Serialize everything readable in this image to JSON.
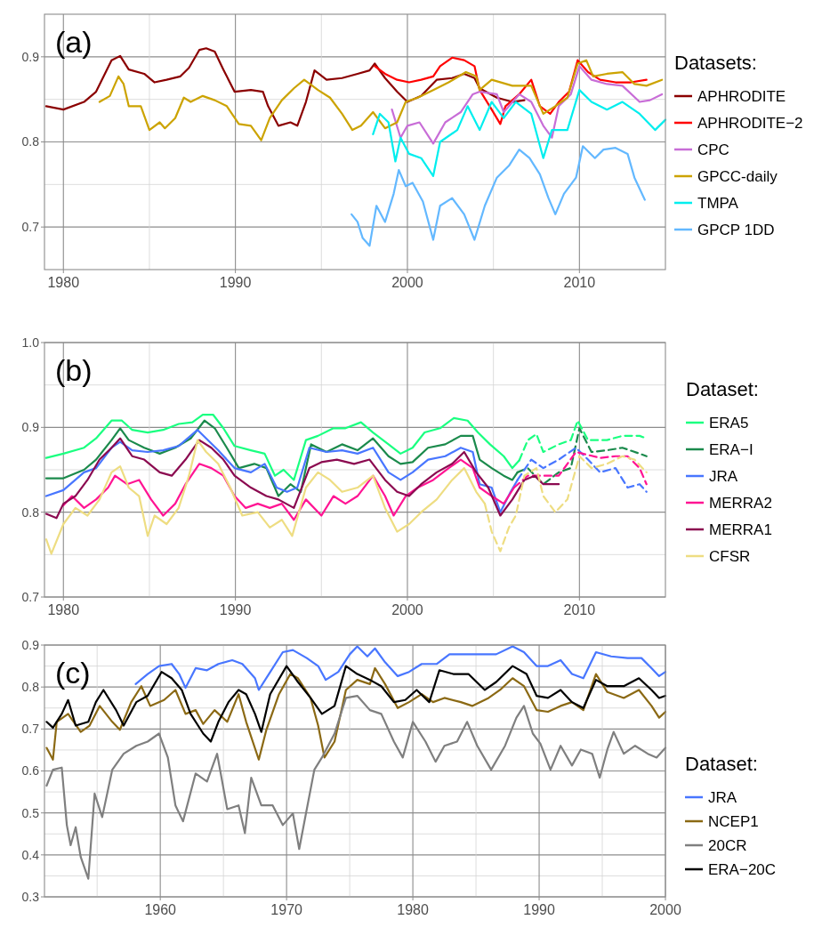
{
  "chart_data": [
    {
      "type": "line",
      "title": "(a)",
      "legend_title": "Datasets:",
      "legend": "right",
      "grid": true,
      "line_style": "solid",
      "xlim": [
        1978.9,
        2015
      ],
      "xticks": [
        1980,
        {
          "value": 1985,
          "label": null
        },
        1990,
        {
          "value": 1995,
          "label": null
        },
        2000,
        {
          "value": 2005,
          "label": null
        },
        2010
      ],
      "ylim": [
        0.65,
        0.95
      ],
      "yticks": [
        0.7,
        {
          "value": 0.75,
          "label": null
        },
        0.8,
        {
          "value": 0.85,
          "label": null
        },
        0.9
      ],
      "series": [
        {
          "name": "APHRODITE",
          "color": "#8b0000",
          "x": [
            1979,
            1980,
            1981.2,
            1981.9,
            1982.8,
            1983.3,
            1983.8,
            1984.7,
            1985.3,
            1986,
            1986.8,
            1987.3,
            1987.9,
            1988.3,
            1988.8,
            1989.3,
            1989.95,
            1990.9,
            1991.6,
            1991.9,
            1992.5,
            1993.2,
            1993.6,
            1994.1,
            1994.6,
            1995.3,
            1996.2,
            1997.1,
            1997.8,
            1998.1,
            1998.7,
            1999.4,
            2000,
            2000.8,
            2001.7,
            2002.6,
            2003.3,
            2003.9,
            2004.2,
            2005.2,
            2006.1,
            2006.8
          ],
          "values": [
            0.842,
            0.838,
            0.847,
            0.859,
            0.896,
            0.901,
            0.885,
            0.88,
            0.87,
            0.873,
            0.877,
            0.887,
            0.908,
            0.91,
            0.906,
            0.885,
            0.859,
            0.861,
            0.859,
            0.842,
            0.819,
            0.823,
            0.819,
            0.847,
            0.884,
            0.873,
            0.875,
            0.88,
            0.884,
            0.892,
            0.875,
            0.859,
            0.847,
            0.854,
            0.873,
            0.875,
            0.88,
            0.875,
            0.863,
            0.852,
            0.847,
            0.849
          ]
        },
        {
          "name": "APHRODITE−2",
          "color": "#ff0000",
          "x": [
            1998.1,
            1998.7,
            1999.4,
            2000.1,
            2000.8,
            2001.5,
            2001.9,
            2002.6,
            2003.3,
            2003.9,
            2004.2,
            2004.9,
            2005.4,
            2005.7,
            2006.5,
            2007.2,
            2007.7,
            2008.3,
            2008.8,
            2009.4,
            2009.9,
            2010.5,
            2011.2,
            2012.1,
            2013,
            2013.9
          ],
          "values": [
            0.889,
            0.88,
            0.873,
            0.87,
            0.873,
            0.877,
            0.889,
            0.899,
            0.896,
            0.889,
            0.861,
            0.838,
            0.821,
            0.842,
            0.856,
            0.873,
            0.842,
            0.833,
            0.847,
            0.859,
            0.896,
            0.882,
            0.873,
            0.87,
            0.87,
            0.873
          ]
        },
        {
          "name": "CPC",
          "color": "#c86dd7",
          "x": [
            1999.1,
            1999.6,
            2000,
            2000.7,
            2001.5,
            2002.2,
            2003.1,
            2003.8,
            2004.2,
            2005.2,
            2005.6,
            2006.5,
            2007.2,
            2007.9,
            2008.4,
            2008.8,
            2009.5,
            2010,
            2010.7,
            2011.6,
            2012.5,
            2013.5,
            2014.1,
            2014.8
          ],
          "values": [
            0.838,
            0.805,
            0.819,
            0.823,
            0.798,
            0.823,
            0.835,
            0.856,
            0.859,
            0.856,
            0.835,
            0.856,
            0.847,
            0.819,
            0.805,
            0.842,
            0.856,
            0.889,
            0.873,
            0.868,
            0.866,
            0.847,
            0.849,
            0.856
          ]
        },
        {
          "name": "GPCC-daily",
          "color": "#cca300",
          "x": [
            1982.1,
            1982.7,
            1983.2,
            1983.5,
            1983.8,
            1984.5,
            1985,
            1985.6,
            1985.9,
            1986.5,
            1987,
            1987.4,
            1988.1,
            1988.8,
            1989.5,
            1990.2,
            1990.9,
            1991.5,
            1992,
            1992.7,
            1993.4,
            1994,
            1994.8,
            1995.5,
            1996.2,
            1996.8,
            1997.3,
            1998,
            1998.7,
            1999.4,
            1999.9,
            2000.6,
            2001.5,
            2002.4,
            2003.4,
            2004,
            2004.2,
            2004.9,
            2006.1,
            2007.2,
            2007.9,
            2008.6,
            2009.3,
            2009.9,
            2010.4,
            2010.8,
            2011.6,
            2012.5,
            2013.2,
            2013.9,
            2014.8
          ],
          "values": [
            0.847,
            0.854,
            0.877,
            0.868,
            0.842,
            0.842,
            0.814,
            0.823,
            0.816,
            0.828,
            0.852,
            0.847,
            0.854,
            0.849,
            0.842,
            0.821,
            0.819,
            0.802,
            0.828,
            0.849,
            0.863,
            0.873,
            0.861,
            0.852,
            0.833,
            0.814,
            0.819,
            0.835,
            0.816,
            0.823,
            0.847,
            0.852,
            0.861,
            0.87,
            0.882,
            0.877,
            0.861,
            0.873,
            0.866,
            0.866,
            0.833,
            0.842,
            0.852,
            0.892,
            0.896,
            0.877,
            0.88,
            0.882,
            0.868,
            0.866,
            0.873
          ]
        },
        {
          "name": "TMPA",
          "color": "#00eeee",
          "x": [
            1998,
            1998.4,
            1998.9,
            1999.3,
            1999.6,
            2000.1,
            2000.8,
            2001.5,
            2001.9,
            2002.9,
            2003.5,
            2004.2,
            2004.9,
            2005.6,
            2006.3,
            2007.2,
            2007.9,
            2008.4,
            2009.3,
            2010,
            2010.7,
            2011.6,
            2012.5,
            2013.5,
            2014.4,
            2015
          ],
          "values": [
            0.809,
            0.833,
            0.823,
            0.777,
            0.805,
            0.786,
            0.781,
            0.76,
            0.8,
            0.814,
            0.842,
            0.814,
            0.847,
            0.828,
            0.847,
            0.833,
            0.781,
            0.814,
            0.814,
            0.861,
            0.847,
            0.838,
            0.847,
            0.833,
            0.814,
            0.826
          ]
        },
        {
          "name": "GPCP 1DD",
          "color": "#63b8ff",
          "x": [
            1996.75,
            1997.1,
            1997.4,
            1997.8,
            1998.2,
            1998.7,
            1999.2,
            1999.5,
            1999.9,
            2000.3,
            2000.9,
            2001.5,
            2001.9,
            2002.6,
            2003.3,
            2003.9,
            2004.5,
            2005.2,
            2005.9,
            2006.5,
            2007.1,
            2007.7,
            2008.2,
            2008.6,
            2009.1,
            2009.8,
            2010.2,
            2010.9,
            2011.4,
            2012.1,
            2012.8,
            2013.2,
            2013.8
          ],
          "values": [
            0.715,
            0.706,
            0.687,
            0.678,
            0.725,
            0.706,
            0.739,
            0.767,
            0.748,
            0.752,
            0.73,
            0.685,
            0.725,
            0.734,
            0.715,
            0.685,
            0.725,
            0.758,
            0.772,
            0.791,
            0.781,
            0.762,
            0.734,
            0.715,
            0.739,
            0.758,
            0.795,
            0.781,
            0.791,
            0.793,
            0.786,
            0.758,
            0.732
          ]
        }
      ]
    },
    {
      "type": "line",
      "title": "(b)",
      "legend_title": "Dataset:",
      "legend": "right",
      "grid": true,
      "line_style": "solid",
      "xlim": [
        1978.9,
        2015
      ],
      "xticks": [
        1980,
        {
          "value": 1985,
          "label": null
        },
        1990,
        {
          "value": 1995,
          "label": null
        },
        2000,
        {
          "value": 2005,
          "label": null
        },
        2010
      ],
      "ylim": [
        0.7,
        1.0
      ],
      "yticks": [
        0.7,
        {
          "value": 0.75,
          "label": null
        },
        0.8,
        {
          "value": 0.85,
          "label": null
        },
        0.9,
        {
          "value": 0.95,
          "label": null
        },
        {
          "value": 1.0,
          "label": "1.0"
        }
      ],
      "series": [
        {
          "name": "ERA5",
          "color": "#1aff80",
          "x": [
            1979,
            1980,
            1981.2,
            1981.9,
            1982.8,
            1983.4,
            1984,
            1984.9,
            1985.8,
            1986.7,
            1987.5,
            1988.1,
            1988.7,
            1989.3,
            1989.95,
            1990.9,
            1991.7,
            1992.3,
            1992.8,
            1993.4,
            1994.1,
            1994.8,
            1995.7,
            1996.4,
            1997.3,
            1998,
            1998.9,
            1999.6,
            2000.3,
            2001,
            2001.9,
            2002.7,
            2003.5,
            2004.1,
            2004.8,
            2005.6,
            2006.1,
            2006.5
          ],
          "values": [
            0.864,
            0.869,
            0.876,
            0.887,
            0.908,
            0.908,
            0.897,
            0.894,
            0.897,
            0.904,
            0.906,
            0.915,
            0.915,
            0.899,
            0.878,
            0.873,
            0.869,
            0.843,
            0.85,
            0.838,
            0.885,
            0.89,
            0.899,
            0.899,
            0.906,
            0.894,
            0.88,
            0.869,
            0.876,
            0.894,
            0.899,
            0.911,
            0.908,
            0.894,
            0.88,
            0.866,
            0.852,
            0.861
          ]
        },
        {
          "color": "#1aff80",
          "line_style": "dashed",
          "x": [
            2006.5,
            2007,
            2007.5,
            2007.9,
            2008.8,
            2009.5,
            2009.9,
            2010.5,
            2011.6,
            2012.5,
            2013.5,
            2013.9
          ],
          "values": [
            0.861,
            0.885,
            0.892,
            0.871,
            0.88,
            0.885,
            0.908,
            0.885,
            0.885,
            0.89,
            0.89,
            0.887
          ]
        },
        {
          "name": "ERA−I",
          "color": "#1b8a4c",
          "x": [
            1979,
            1980,
            1981.2,
            1981.9,
            1982.8,
            1983.3,
            1983.8,
            1984.7,
            1985.6,
            1986.5,
            1987.4,
            1988.2,
            1988.8,
            1989.5,
            1990.2,
            1991.1,
            1991.8,
            1992.5,
            1993.2,
            1993.8,
            1994.4,
            1995.3,
            1996.2,
            1997.1,
            1998,
            1998.9,
            1999.6,
            2000.3,
            2001.2,
            2002.2,
            2003.1,
            2003.8,
            2004.2,
            2004.9,
            2005.6,
            2006.1,
            2006.4
          ],
          "values": [
            0.84,
            0.84,
            0.85,
            0.862,
            0.885,
            0.899,
            0.885,
            0.876,
            0.869,
            0.876,
            0.887,
            0.908,
            0.899,
            0.876,
            0.852,
            0.857,
            0.852,
            0.819,
            0.833,
            0.824,
            0.88,
            0.871,
            0.88,
            0.873,
            0.887,
            0.866,
            0.857,
            0.859,
            0.876,
            0.88,
            0.89,
            0.89,
            0.862,
            0.852,
            0.843,
            0.838,
            0.847
          ]
        },
        {
          "color": "#1b8a4c",
          "line_style": "dashed",
          "x": [
            2006.4,
            2007,
            2007.9,
            2008.8,
            2009.5,
            2010,
            2010.7,
            2011.6,
            2012.5,
            2013.5,
            2013.9
          ],
          "values": [
            0.847,
            0.852,
            0.833,
            0.847,
            0.852,
            0.899,
            0.871,
            0.873,
            0.876,
            0.869,
            0.866
          ]
        },
        {
          "name": "JRA",
          "color": "#4876ff",
          "x": [
            1979,
            1980,
            1981.2,
            1981.9,
            1982.8,
            1983.3,
            1984,
            1984.9,
            1985.8,
            1986.7,
            1987.8,
            1988.3,
            1989,
            1989.95,
            1990.9,
            1991.7,
            1992.4,
            1993,
            1993.6,
            1994.3,
            1995.3,
            1996.2,
            1997.1,
            1998,
            1998.9,
            1999.6,
            2000.3,
            2001.2,
            2002.2,
            2003.1,
            2003.8,
            2004.2,
            2004.9,
            2005.4,
            2006,
            2006.4
          ],
          "values": [
            0.819,
            0.826,
            0.847,
            0.852,
            0.876,
            0.883,
            0.873,
            0.871,
            0.873,
            0.878,
            0.897,
            0.887,
            0.873,
            0.852,
            0.847,
            0.857,
            0.829,
            0.824,
            0.829,
            0.876,
            0.871,
            0.873,
            0.869,
            0.876,
            0.847,
            0.838,
            0.847,
            0.862,
            0.866,
            0.876,
            0.871,
            0.833,
            0.829,
            0.8,
            0.824,
            0.838
          ]
        },
        {
          "color": "#4876ff",
          "line_style": "dashed",
          "x": [
            2006.4,
            2007.2,
            2007.9,
            2008.8,
            2009.8,
            2010.5,
            2011.2,
            2012.1,
            2012.8,
            2013.5,
            2013.9
          ],
          "values": [
            0.838,
            0.862,
            0.852,
            0.862,
            0.876,
            0.862,
            0.847,
            0.852,
            0.829,
            0.833,
            0.824
          ]
        },
        {
          "name": "MERRA2",
          "color": "#ff1493",
          "x": [
            1980,
            1980.5,
            1981.2,
            1981.9,
            1982.6,
            1983,
            1983.7,
            1984.4,
            1985.1,
            1985.8,
            1986.5,
            1987.1,
            1987.9,
            1988.6,
            1989.3,
            1989.95,
            1990.6,
            1991.3,
            1992,
            1992.7,
            1993.4,
            1994.1,
            1995,
            1995.7,
            1996.4,
            1997.1,
            1998,
            1998.7,
            1999.2,
            1999.9,
            2000.6,
            2001.5,
            2002.4,
            2003.1,
            2003.8,
            2004.2,
            2004.9,
            2005.6,
            2006.2
          ],
          "values": [
            0.808,
            0.819,
            0.805,
            0.815,
            0.829,
            0.843,
            0.833,
            0.838,
            0.815,
            0.796,
            0.81,
            0.833,
            0.857,
            0.852,
            0.843,
            0.819,
            0.805,
            0.81,
            0.805,
            0.81,
            0.791,
            0.815,
            0.796,
            0.819,
            0.81,
            0.819,
            0.843,
            0.819,
            0.796,
            0.819,
            0.829,
            0.838,
            0.852,
            0.862,
            0.852,
            0.829,
            0.819,
            0.81,
            0.829
          ]
        },
        {
          "color": "#ff1493",
          "line_style": "dashed",
          "x": [
            2006.2,
            2007,
            2007.9,
            2008.8,
            2009.8,
            2011.2,
            2012.1,
            2012.8,
            2013.5,
            2013.9
          ],
          "values": [
            0.829,
            0.843,
            0.843,
            0.843,
            0.871,
            0.864,
            0.866,
            0.866,
            0.852,
            0.833
          ]
        },
        {
          "name": "MERRA1",
          "color": "#8b0a50",
          "x": [
            1979,
            1979.6,
            1980,
            1980.7,
            1981.4,
            1982.1,
            1982.8,
            1983.3,
            1984,
            1984.7,
            1985.6,
            1986.3,
            1987.1,
            1987.9,
            1988.6,
            1989.3,
            1989.95,
            1990.9,
            1991.8,
            1992.5,
            1993.4,
            1994.3,
            1995,
            1995.9,
            1996.9,
            1997.8,
            1998.7,
            1999.4,
            2000.1,
            2000.8,
            2001.7,
            2002.6,
            2003.3,
            2004,
            2004.7,
            2005.4,
            2006.1,
            2006.8,
            2007.4,
            2007.9,
            2008.8
          ],
          "values": [
            0.798,
            0.793,
            0.81,
            0.819,
            0.838,
            0.862,
            0.876,
            0.887,
            0.866,
            0.862,
            0.847,
            0.843,
            0.862,
            0.885,
            0.876,
            0.862,
            0.843,
            0.829,
            0.819,
            0.815,
            0.805,
            0.852,
            0.859,
            0.862,
            0.857,
            0.862,
            0.838,
            0.824,
            0.819,
            0.833,
            0.847,
            0.857,
            0.871,
            0.847,
            0.829,
            0.796,
            0.815,
            0.838,
            0.843,
            0.833,
            0.833
          ]
        },
        {
          "name": "CFSR",
          "color": "#eedd82",
          "x": [
            1979,
            1979.3,
            1980,
            1980.7,
            1981.4,
            1982.1,
            1982.8,
            1983.3,
            1983.8,
            1984.4,
            1984.9,
            1985.3,
            1986,
            1986.7,
            1987.3,
            1987.8,
            1988.3,
            1989,
            1989.7,
            1990.4,
            1991.3,
            1992,
            1992.7,
            1993.3,
            1994.1,
            1994.8,
            1995.5,
            1996.2,
            1997.1,
            1998,
            1998.7,
            1999.4,
            2000.1,
            2000.8,
            2001.7,
            2002.6,
            2003.3,
            2004,
            2004.5
          ],
          "values": [
            0.768,
            0.751,
            0.786,
            0.805,
            0.796,
            0.815,
            0.847,
            0.854,
            0.829,
            0.819,
            0.772,
            0.796,
            0.786,
            0.805,
            0.843,
            0.885,
            0.871,
            0.857,
            0.829,
            0.796,
            0.8,
            0.782,
            0.791,
            0.772,
            0.829,
            0.847,
            0.838,
            0.824,
            0.829,
            0.843,
            0.805,
            0.777,
            0.786,
            0.8,
            0.815,
            0.838,
            0.852,
            0.824,
            0.81
          ]
        },
        {
          "color": "#eedd82",
          "line_style": "dashed",
          "x": [
            2004.5,
            2004.9,
            2005.4,
            2005.9,
            2006.3,
            2006.8,
            2007.5,
            2007.9,
            2008.6,
            2009.3,
            2010,
            2010.7,
            2011.6,
            2012.5,
            2013.2,
            2013.9
          ],
          "values": [
            0.81,
            0.777,
            0.754,
            0.782,
            0.796,
            0.843,
            0.852,
            0.819,
            0.8,
            0.815,
            0.866,
            0.852,
            0.857,
            0.866,
            0.862,
            0.847
          ]
        }
      ]
    },
    {
      "type": "line",
      "title": "(c)",
      "legend_title": "Dataset:",
      "legend": "right",
      "grid": true,
      "line_style": "solid",
      "xlim": [
        1950.83,
        2000
      ],
      "xticks": [
        {
          "value": 1955,
          "label": null
        },
        1960,
        {
          "value": 1965,
          "label": null
        },
        1970,
        {
          "value": 1975,
          "label": null
        },
        1980,
        {
          "value": 1985,
          "label": null
        },
        1990,
        {
          "value": 1995,
          "label": null
        },
        2000
      ],
      "ylim": [
        0.3,
        0.9
      ],
      "yticks": [
        0.3,
        {
          "value": 0.35,
          "label": null
        },
        0.4,
        {
          "value": 0.45,
          "label": null
        },
        0.5,
        {
          "value": 0.55,
          "label": null
        },
        0.6,
        {
          "value": 0.65,
          "label": null
        },
        0.7,
        {
          "value": 0.75,
          "label": null
        },
        0.8,
        {
          "value": 0.85,
          "label": null
        },
        0.9
      ],
      "series": [
        {
          "name": "JRA",
          "color": "#4876ff",
          "x": [
            1958.05,
            1959,
            1959.9,
            1960.9,
            1961.5,
            1962,
            1962.8,
            1963.7,
            1964.6,
            1965.7,
            1966.5,
            1967.5,
            1967.8,
            1968.6,
            1969.7,
            1970.5,
            1971.6,
            1972.5,
            1973.1,
            1974.1,
            1975,
            1975.6,
            1976.4,
            1977,
            1977.8,
            1978.8,
            1979.7,
            1980.7,
            1981.9,
            1982.9,
            1984.1,
            1985.4,
            1986.6,
            1987.9,
            1988.8,
            1989.8,
            1990.7,
            1991.7,
            1992.6,
            1993.5,
            1994.5,
            1995.7,
            1997,
            1998.1,
            1998.9,
            1999.5,
            2000
          ],
          "values": [
            0.807,
            0.831,
            0.85,
            0.855,
            0.831,
            0.798,
            0.845,
            0.84,
            0.855,
            0.864,
            0.855,
            0.821,
            0.793,
            0.831,
            0.883,
            0.888,
            0.869,
            0.85,
            0.817,
            0.836,
            0.878,
            0.897,
            0.873,
            0.892,
            0.859,
            0.826,
            0.836,
            0.855,
            0.855,
            0.878,
            0.878,
            0.878,
            0.878,
            0.897,
            0.883,
            0.85,
            0.85,
            0.864,
            0.831,
            0.821,
            0.883,
            0.873,
            0.869,
            0.869,
            0.845,
            0.826,
            0.836
          ]
        },
        {
          "name": "NCEP1",
          "color": "#8b6914",
          "x": [
            1951,
            1951.5,
            1951.8,
            1952.7,
            1953.7,
            1954.4,
            1955.2,
            1956.2,
            1956.8,
            1957.7,
            1958.5,
            1959.2,
            1960.3,
            1961.2,
            1962,
            1962.8,
            1963.4,
            1964.3,
            1965.3,
            1966.2,
            1966.8,
            1967.8,
            1968.4,
            1969.4,
            1970.3,
            1970.9,
            1971.9,
            1972.5,
            1973,
            1973.8,
            1974.7,
            1975.6,
            1976.6,
            1977,
            1977.8,
            1978.8,
            1979.7,
            1980.7,
            1981.6,
            1982.5,
            1983.8,
            1984.7,
            1986,
            1986.9,
            1987.9,
            1988.8,
            1989.8,
            1990.7,
            1991.7,
            1992.6,
            1993.5,
            1994.5,
            1995.4,
            1996.7,
            1997.9,
            1998.9,
            1999.5,
            2000
          ],
          "values": [
            0.655,
            0.627,
            0.717,
            0.736,
            0.693,
            0.708,
            0.755,
            0.717,
            0.698,
            0.764,
            0.802,
            0.755,
            0.769,
            0.793,
            0.736,
            0.745,
            0.712,
            0.745,
            0.717,
            0.783,
            0.717,
            0.627,
            0.698,
            0.783,
            0.831,
            0.821,
            0.774,
            0.708,
            0.632,
            0.67,
            0.793,
            0.817,
            0.807,
            0.845,
            0.807,
            0.75,
            0.764,
            0.783,
            0.764,
            0.774,
            0.764,
            0.755,
            0.774,
            0.793,
            0.821,
            0.802,
            0.745,
            0.741,
            0.755,
            0.764,
            0.745,
            0.831,
            0.788,
            0.774,
            0.793,
            0.755,
            0.727,
            0.741
          ]
        },
        {
          "name": "20CR",
          "color": "#7f7f7f",
          "x": [
            1951,
            1951.5,
            1952.2,
            1952.6,
            1952.9,
            1953.3,
            1953.7,
            1954.3,
            1954.8,
            1955.4,
            1956.2,
            1957.1,
            1958.1,
            1959,
            1959.9,
            1960.6,
            1961.2,
            1961.8,
            1962.8,
            1963.7,
            1964.5,
            1965.3,
            1966.2,
            1966.7,
            1967.2,
            1968,
            1968.9,
            1969.7,
            1970.5,
            1971,
            1971.6,
            1972.2,
            1972.8,
            1973.8,
            1974.7,
            1975.6,
            1976.6,
            1977.5,
            1978.5,
            1979.2,
            1980,
            1981,
            1981.8,
            1982.5,
            1983.5,
            1984.3,
            1985.1,
            1986.2,
            1987.3,
            1988.2,
            1988.8,
            1989.5,
            1990.1,
            1990.9,
            1991.7,
            1992.6,
            1993.3,
            1994.2,
            1994.8,
            1995.4,
            1995.9,
            1996.7,
            1997.6,
            1998.6,
            1999.3,
            2000
          ],
          "values": [
            0.565,
            0.603,
            0.608,
            0.471,
            0.423,
            0.466,
            0.395,
            0.343,
            0.546,
            0.49,
            0.603,
            0.641,
            0.66,
            0.67,
            0.689,
            0.632,
            0.518,
            0.48,
            0.594,
            0.575,
            0.641,
            0.509,
            0.518,
            0.452,
            0.584,
            0.518,
            0.518,
            0.471,
            0.499,
            0.414,
            0.509,
            0.603,
            0.632,
            0.689,
            0.774,
            0.779,
            0.745,
            0.736,
            0.67,
            0.632,
            0.717,
            0.67,
            0.622,
            0.66,
            0.67,
            0.717,
            0.66,
            0.603,
            0.66,
            0.727,
            0.755,
            0.689,
            0.665,
            0.603,
            0.66,
            0.613,
            0.651,
            0.641,
            0.584,
            0.651,
            0.693,
            0.641,
            0.66,
            0.641,
            0.632,
            0.655
          ]
        },
        {
          "name": "ERA−20C",
          "color": "#000000",
          "x": [
            1951,
            1951.5,
            1952.2,
            1952.7,
            1953.3,
            1954.3,
            1954.9,
            1955.5,
            1956.5,
            1957.1,
            1958.1,
            1959,
            1960.1,
            1960.9,
            1961.7,
            1962.4,
            1963.4,
            1964,
            1964.6,
            1965.4,
            1966.2,
            1966.8,
            1967.5,
            1968,
            1968.7,
            1970,
            1970.9,
            1971.9,
            1972.8,
            1973.8,
            1974.7,
            1975.6,
            1976.6,
            1977.5,
            1978.5,
            1979.4,
            1980.3,
            1981.3,
            1982.1,
            1983.2,
            1984.4,
            1985.7,
            1986.6,
            1987.9,
            1989,
            1989.8,
            1990.7,
            1991.7,
            1992.6,
            1993.5,
            1994.5,
            1995.4,
            1996.7,
            1997.9,
            1998.9,
            1999.5,
            2000
          ],
          "values": [
            0.717,
            0.703,
            0.736,
            0.769,
            0.708,
            0.717,
            0.764,
            0.793,
            0.745,
            0.708,
            0.764,
            0.779,
            0.836,
            0.821,
            0.793,
            0.736,
            0.689,
            0.67,
            0.717,
            0.764,
            0.793,
            0.783,
            0.736,
            0.693,
            0.783,
            0.85,
            0.812,
            0.774,
            0.736,
            0.755,
            0.85,
            0.831,
            0.817,
            0.802,
            0.764,
            0.769,
            0.793,
            0.764,
            0.84,
            0.831,
            0.831,
            0.793,
            0.812,
            0.85,
            0.831,
            0.779,
            0.774,
            0.793,
            0.764,
            0.75,
            0.817,
            0.802,
            0.802,
            0.821,
            0.793,
            0.774,
            0.779
          ]
        }
      ]
    }
  ]
}
